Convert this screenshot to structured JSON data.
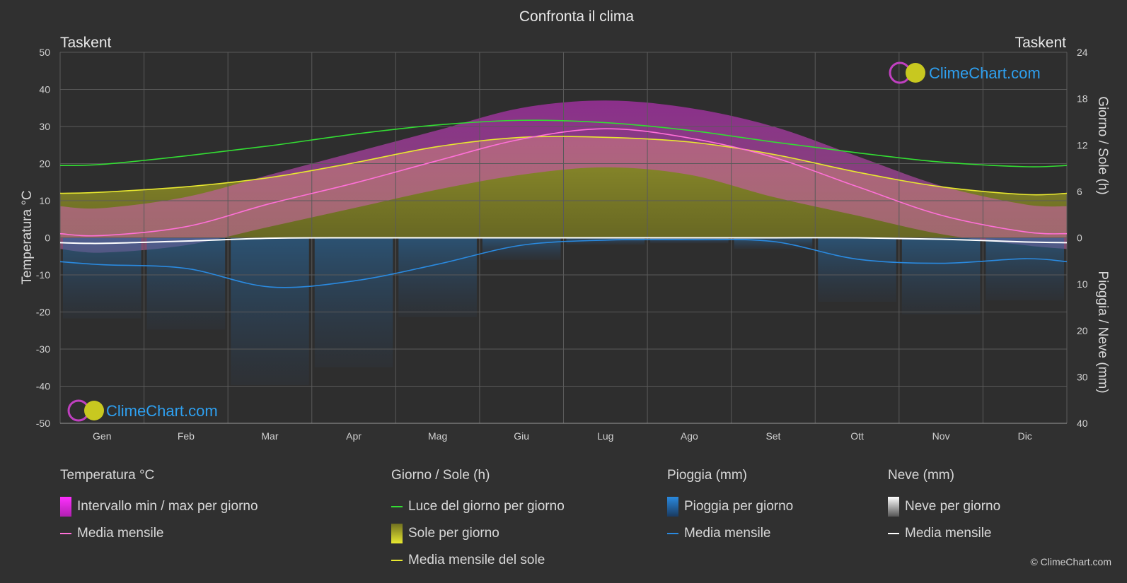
{
  "title": "Confronta il clima",
  "location_left": "Taskent",
  "location_right": "Taskent",
  "brand": "ClimeChart.com",
  "copyright": "© ClimeChart.com",
  "chart_data": {
    "type": "line",
    "x_categories": [
      "Gen",
      "Feb",
      "Mar",
      "Apr",
      "Mag",
      "Giu",
      "Lug",
      "Ago",
      "Set",
      "Ott",
      "Nov",
      "Dic"
    ],
    "y_left": {
      "label": "Temperatura °C",
      "range": [
        -50,
        50
      ],
      "ticks": [
        50,
        40,
        30,
        20,
        10,
        0,
        -10,
        -20,
        -30,
        -40,
        -50
      ]
    },
    "y_right_top": {
      "label": "Giorno / Sole (h)",
      "range": [
        0,
        24
      ],
      "ticks": [
        24,
        18,
        12,
        6,
        0
      ]
    },
    "y_right_bottom": {
      "label": "Pioggia / Neve (mm)",
      "range": [
        0,
        40
      ],
      "ticks": [
        0,
        10,
        20,
        30,
        40
      ]
    },
    "grid": true,
    "series": [
      {
        "name": "Luce del giorno per giorno",
        "unit": "h",
        "color": "#33dd33",
        "values": [
          9.5,
          10.6,
          11.9,
          13.4,
          14.6,
          15.2,
          14.9,
          13.9,
          12.4,
          11.0,
          9.8,
          9.2
        ]
      },
      {
        "name": "Media mensile del sole",
        "unit": "h",
        "color": "#e8e830",
        "values": [
          5.9,
          6.6,
          7.8,
          9.7,
          11.8,
          13.0,
          13.0,
          12.4,
          10.8,
          8.5,
          6.6,
          5.6
        ]
      },
      {
        "name": "Media mensile",
        "group": "Temperatura °C",
        "unit": "°C",
        "color": "#ff70d8",
        "values": [
          0.6,
          3.0,
          9.2,
          14.7,
          20.8,
          26.6,
          29.4,
          26.9,
          21.7,
          13.8,
          6.1,
          1.6
        ]
      },
      {
        "name": "Media mensile",
        "group": "Pioggia (mm)",
        "unit": "mm",
        "color": "#2a8ae0",
        "values": [
          5.8,
          6.6,
          10.6,
          9.3,
          5.7,
          1.6,
          0.5,
          0.4,
          0.8,
          4.6,
          5.5,
          4.5
        ]
      },
      {
        "name": "Media mensile",
        "group": "Neve (mm)",
        "unit": "mm",
        "color": "#ffffff",
        "values": [
          1.2,
          0.7,
          0.1,
          0.0,
          0.0,
          0.0,
          0.0,
          0.0,
          0.0,
          0.0,
          0.3,
          0.9
        ]
      }
    ],
    "ranges": {
      "temp_max_avg": [
        8,
        11,
        17,
        23,
        29,
        35,
        37,
        35,
        30,
        22,
        14,
        9
      ],
      "temp_min_avg": [
        -4,
        -2,
        3,
        8,
        13,
        17,
        19,
        17,
        11,
        6,
        1,
        -2
      ]
    }
  },
  "legend": {
    "temp": {
      "header": "Temperatura °C",
      "items": [
        "Intervallo min / max per giorno",
        "Media mensile"
      ]
    },
    "sun": {
      "header": "Giorno / Sole (h)",
      "items": [
        "Luce del giorno per giorno",
        "Sole per giorno",
        "Media mensile del sole"
      ]
    },
    "rain": {
      "header": "Pioggia (mm)",
      "items": [
        "Pioggia per giorno",
        "Media mensile"
      ]
    },
    "snow": {
      "header": "Neve (mm)",
      "items": [
        "Neve per giorno",
        "Media mensile"
      ]
    }
  }
}
